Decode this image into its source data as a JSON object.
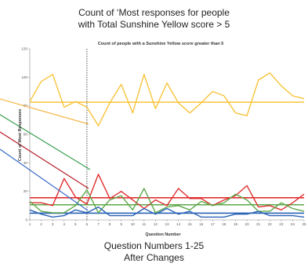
{
  "caption_top": [
    "Count of ‘Most responses for people",
    "with Total Sunshine Yellow score > 5"
  ],
  "caption_bottom": [
    "Question Numbers 1-25",
    "After Changes"
  ],
  "chart_data": {
    "type": "line",
    "title": "Count of people with a Sunshine Yellow score greater than 5",
    "xlabel": "Question Number",
    "ylabel": "Count of Most Responses",
    "x": [
      1,
      2,
      3,
      4,
      5,
      6,
      7,
      8,
      9,
      10,
      11,
      12,
      13,
      14,
      15,
      16,
      17,
      18,
      19,
      20,
      21,
      22,
      23,
      24,
      25
    ],
    "xlim": [
      1,
      25
    ],
    "ylim": [
      0,
      120
    ],
    "grid": false,
    "divider_after_question": 6,
    "series": [
      {
        "color": "#f9c43c",
        "values": [
          83,
          97,
          102,
          79,
          83,
          79,
          66,
          82,
          95,
          75,
          102,
          78,
          96,
          82,
          75,
          82,
          90,
          87,
          75,
          73,
          98,
          103,
          94,
          87,
          85
        ],
        "reference": 82.5
      },
      {
        "color": "#e03030",
        "values": [
          12,
          12,
          10,
          29,
          16,
          11,
          32,
          15,
          20,
          14,
          8,
          14,
          10,
          22,
          15,
          15,
          10,
          14,
          17,
          24,
          9,
          10,
          7,
          12,
          18
        ],
        "reference": 15.5
      },
      {
        "color": "#5ea84a",
        "values": [
          13,
          6,
          5,
          5,
          10,
          21,
          5,
          14,
          17,
          7,
          22,
          5,
          9,
          10,
          7,
          13,
          10,
          12,
          18,
          14,
          6,
          6,
          12,
          8,
          6
        ],
        "reference": 10.6
      },
      {
        "color": "#2a62b6",
        "values": [
          7,
          4,
          2,
          3,
          7,
          5,
          9,
          3,
          3,
          3,
          8,
          4,
          8,
          4,
          6,
          2,
          2,
          2,
          4,
          4,
          6,
          3,
          3,
          3,
          2
        ],
        "reference": 4.7
      }
    ],
    "pointer_lines": [
      {
        "color": "#f5b84a"
      },
      {
        "color": "#3aa050"
      },
      {
        "color": "#b8202a"
      },
      {
        "color": "#3a6cc8"
      }
    ]
  }
}
